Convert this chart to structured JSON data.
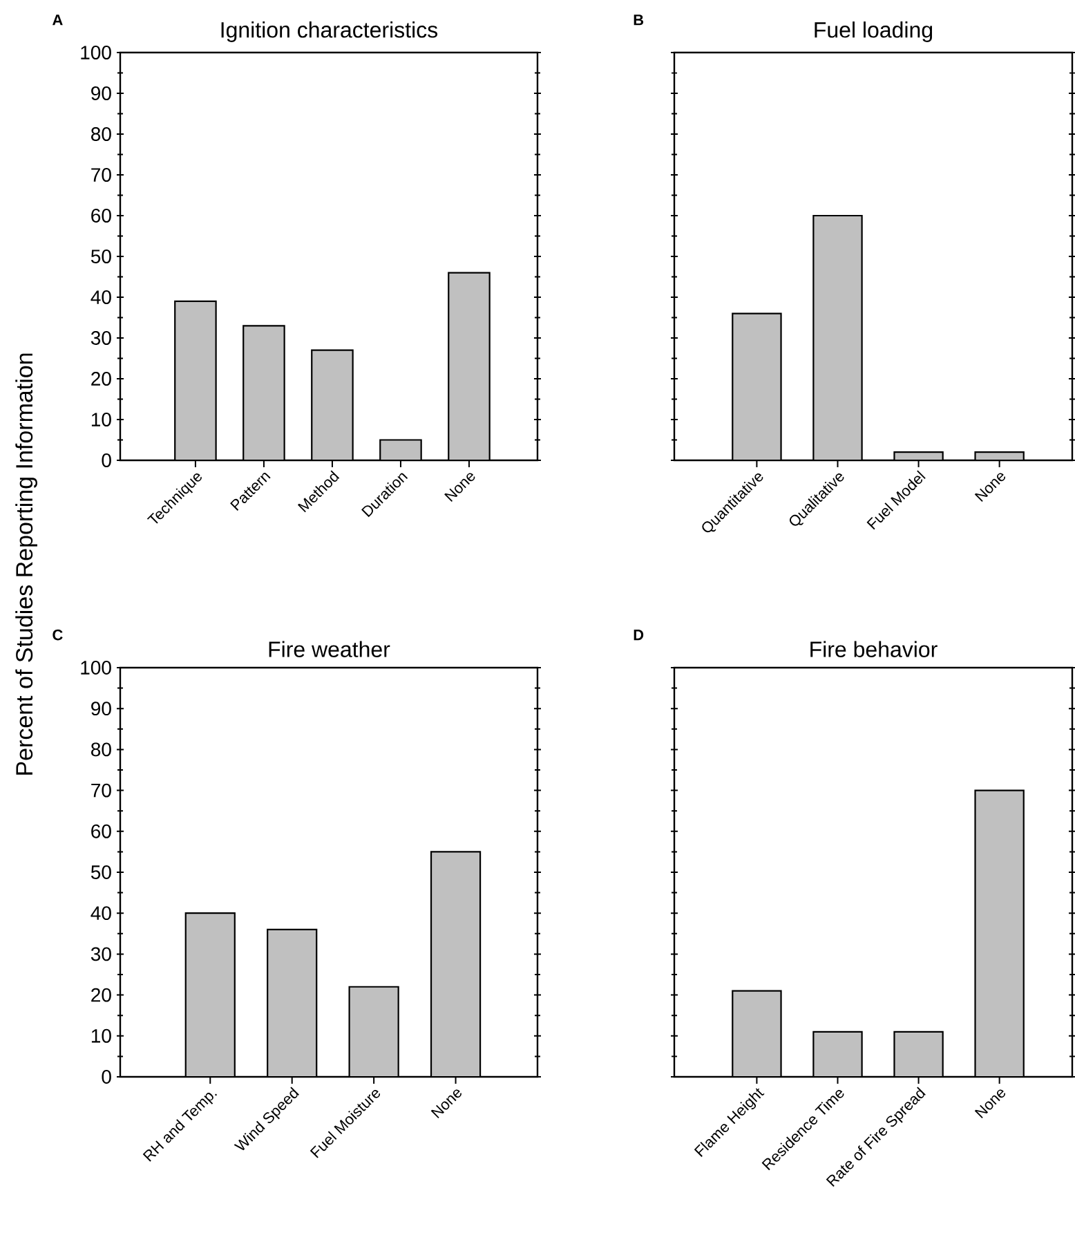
{
  "chart_data": [
    {
      "type": "bar",
      "title": "Ignition characteristics",
      "ylabel": "Percent of Studies Reporting Information",
      "annotations": [
        "A"
      ],
      "categories": [
        "Technique",
        "Pattern",
        "Method",
        "Duration",
        "None"
      ],
      "values": [
        39,
        33,
        27,
        5,
        46
      ],
      "color": "#c0c0c0",
      "ylim": [
        0,
        100
      ],
      "yticks": [
        0,
        10,
        20,
        30,
        40,
        50,
        60,
        70,
        80,
        90,
        100
      ]
    },
    {
      "type": "bar",
      "title": "Fuel loading",
      "annotations": [
        "B"
      ],
      "categories": [
        "Quantitative",
        "Qualitative",
        "Fuel Model",
        "None"
      ],
      "values": [
        36,
        60,
        2,
        2
      ],
      "color": "#c0c0c0",
      "ylim": [
        0,
        100
      ],
      "yticks": [
        0,
        10,
        20,
        30,
        40,
        50,
        60,
        70,
        80,
        90,
        100
      ],
      "tick_labels": "x"
    },
    {
      "type": "bar",
      "title": "Fire weather",
      "annotations": [
        "C"
      ],
      "categories": [
        "RH and Temp.",
        "Wind Speed",
        "Fuel Moisture",
        "None"
      ],
      "values": [
        40,
        36,
        22,
        55
      ],
      "color": "#c0c0c0",
      "ylim": [
        0,
        100
      ],
      "yticks": [
        0,
        10,
        20,
        30,
        40,
        50,
        60,
        70,
        80,
        90,
        100
      ]
    },
    {
      "type": "bar",
      "title": "Fire behavior",
      "annotations": [
        "D"
      ],
      "categories": [
        "Flame Height",
        "Residence Time",
        "Rate of Fire Spread",
        "None"
      ],
      "values": [
        21,
        11,
        11,
        70
      ],
      "color": "#c0c0c0",
      "ylim": [
        0,
        100
      ],
      "yticks": [
        0,
        10,
        20,
        30,
        40,
        50,
        60,
        70,
        80,
        90,
        100
      ],
      "tick_labels": "x"
    }
  ]
}
